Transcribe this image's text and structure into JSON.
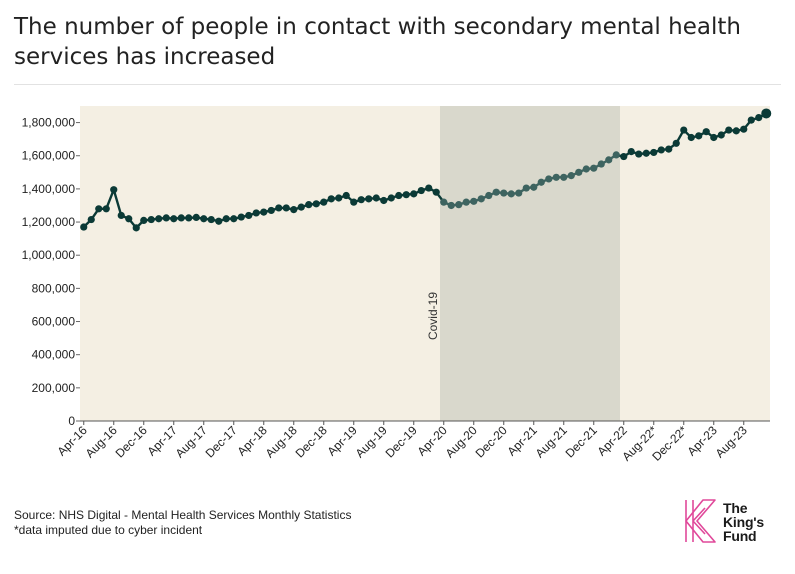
{
  "header": {
    "title": "The number of people in contact with secondary mental health services has increased"
  },
  "footer": {
    "source": "Source: NHS Digital - Mental Health Services Monthly Statistics",
    "note": "*data imputed due to cyber incident"
  },
  "logo": {
    "line1": "The",
    "line2": "King's",
    "line3": "Fund",
    "color": "#e0489a"
  },
  "colors": {
    "plot_background": "#f4efe3",
    "shaded_region": "#d9d8cc",
    "line": "#0b3a36",
    "line_in_shade": "#3e6460"
  },
  "chart_data": {
    "type": "line",
    "title": "The number of people in contact with secondary mental health services has increased",
    "xlabel": "",
    "ylabel": "",
    "ylim": [
      0,
      1900000
    ],
    "yticks": [
      0,
      200000,
      400000,
      600000,
      800000,
      1000000,
      1200000,
      1400000,
      1600000,
      1800000
    ],
    "ytick_labels": [
      "0",
      "200,000",
      "400,000",
      "600,000",
      "800,000",
      "1,000,000",
      "1,200,000",
      "1,400,000",
      "1,600,000",
      "1,800,000"
    ],
    "x_start": "Apr-16",
    "xtick_labels": [
      "Apr-16",
      "Aug-16",
      "Dec-16",
      "Apr-17",
      "Aug-17",
      "Dec-17",
      "Apr-18",
      "Aug-18",
      "Dec-18",
      "Apr-19",
      "Aug-19",
      "Dec-19",
      "Apr-20",
      "Aug-20",
      "Dec-20",
      "Apr-21",
      "Aug-21",
      "Dec-21",
      "Apr-22",
      "Aug-22*",
      "Dec-22*",
      "Apr-23",
      "Aug-23"
    ],
    "grid": false,
    "legend": "none",
    "annotation": {
      "label": "Covid-19",
      "from": "Apr-20",
      "to": "Mar-22"
    },
    "series": [
      {
        "values": [
          1170000,
          1215000,
          1280000,
          1280000,
          1395000,
          1240000,
          1220000,
          1165000,
          1210000,
          1215000,
          1220000,
          1225000,
          1220000,
          1225000,
          1225000,
          1228000,
          1220000,
          1215000,
          1205000,
          1220000,
          1220000,
          1230000,
          1240000,
          1255000,
          1260000,
          1270000,
          1285000,
          1285000,
          1275000,
          1290000,
          1305000,
          1310000,
          1320000,
          1340000,
          1345000,
          1360000,
          1320000,
          1335000,
          1340000,
          1345000,
          1330000,
          1345000,
          1360000,
          1365000,
          1370000,
          1390000,
          1405000,
          1380000,
          1320000,
          1300000,
          1305000,
          1320000,
          1325000,
          1340000,
          1360000,
          1380000,
          1375000,
          1370000,
          1375000,
          1405000,
          1410000,
          1440000,
          1460000,
          1470000,
          1470000,
          1480000,
          1500000,
          1520000,
          1525000,
          1550000,
          1575000,
          1605000,
          1595000,
          1625000,
          1610000,
          1615000,
          1620000,
          1635000,
          1640000,
          1675000,
          1755000,
          1710000,
          1720000,
          1745000,
          1710000,
          1725000,
          1755000,
          1750000,
          1760000,
          1815000,
          1830000,
          1855000
        ]
      }
    ]
  }
}
